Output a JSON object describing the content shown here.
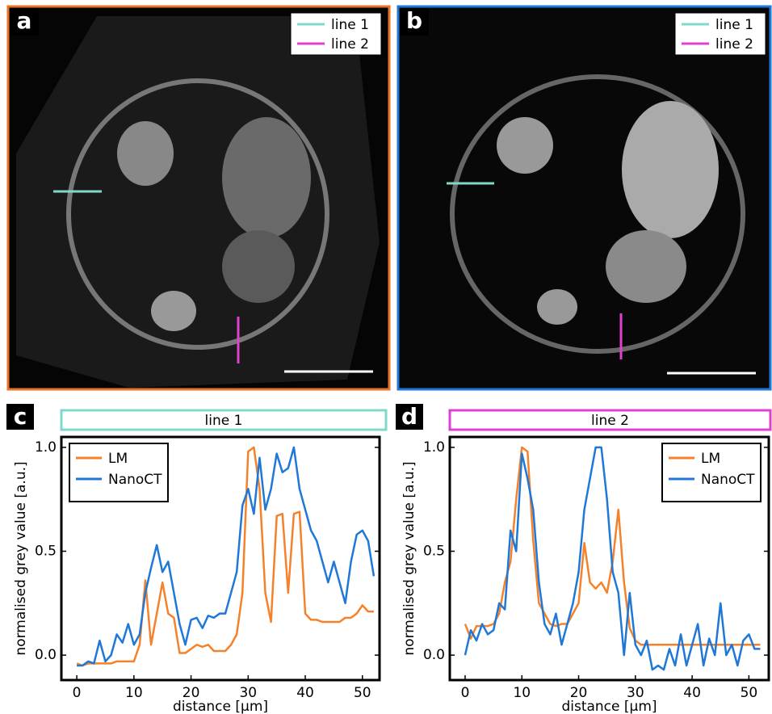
{
  "panels": [
    {
      "label": "a",
      "legend": [
        "line 1",
        "line 2"
      ]
    },
    {
      "label": "b",
      "legend": [
        "line 1",
        "line 2"
      ]
    }
  ],
  "chart_data": [
    {
      "type": "line",
      "panel": "c",
      "title": "line 1",
      "title_color": "#7fd8c8",
      "xlabel": "distance [µm]",
      "ylabel": "normalised grey value [a.u.]",
      "x": [
        0,
        1,
        2,
        3,
        4,
        5,
        6,
        7,
        8,
        9,
        10,
        11,
        12,
        13,
        14,
        15,
        16,
        17,
        18,
        19,
        20,
        21,
        22,
        23,
        24,
        25,
        26,
        27,
        28,
        29,
        30,
        31,
        32,
        33,
        34,
        35,
        36,
        37,
        38,
        39,
        40,
        41,
        42,
        43,
        44,
        45,
        46,
        47,
        48,
        49,
        50,
        51,
        52
      ],
      "series": [
        {
          "name": "LM",
          "color": "#f5822a",
          "values": [
            -0.04,
            -0.05,
            -0.04,
            -0.04,
            -0.04,
            -0.04,
            -0.04,
            -0.03,
            -0.03,
            -0.03,
            -0.03,
            0.05,
            0.36,
            0.05,
            0.2,
            0.35,
            0.2,
            0.18,
            0.01,
            0.01,
            0.03,
            0.05,
            0.04,
            0.05,
            0.02,
            0.02,
            0.02,
            0.05,
            0.1,
            0.3,
            0.98,
            1.0,
            0.8,
            0.3,
            0.16,
            0.67,
            0.68,
            0.3,
            0.68,
            0.69,
            0.2,
            0.17,
            0.17,
            0.16,
            0.16,
            0.16,
            0.16,
            0.18,
            0.18,
            0.2,
            0.24,
            0.21,
            0.21
          ]
        },
        {
          "name": "NanoCT",
          "color": "#1f78d8",
          "values": [
            -0.05,
            -0.05,
            -0.03,
            -0.04,
            0.07,
            -0.03,
            0.0,
            0.1,
            0.06,
            0.15,
            0.05,
            0.1,
            0.3,
            0.42,
            0.53,
            0.4,
            0.45,
            0.3,
            0.15,
            0.05,
            0.17,
            0.18,
            0.13,
            0.19,
            0.18,
            0.2,
            0.2,
            0.3,
            0.4,
            0.72,
            0.8,
            0.68,
            0.95,
            0.7,
            0.8,
            0.97,
            0.88,
            0.9,
            1.0,
            0.8,
            0.7,
            0.6,
            0.55,
            0.45,
            0.35,
            0.45,
            0.35,
            0.25,
            0.45,
            0.58,
            0.6,
            0.55,
            0.38
          ]
        }
      ],
      "xlim": [
        -2.7,
        53
      ],
      "ylim": [
        -0.12,
        1.05
      ],
      "xticks": [
        0,
        10,
        20,
        30,
        40,
        50
      ],
      "yticks": [
        {
          "value": 0,
          "label": "0.0"
        },
        0.5,
        {
          "value": 1,
          "label": "1.0"
        }
      ],
      "legend": "upper left"
    },
    {
      "type": "line",
      "panel": "d",
      "title": "line 2",
      "title_color": "#e040d0",
      "xlabel": "distance [µm]",
      "ylabel": "normalised grey value [a.u.]",
      "x": [
        0,
        1,
        2,
        3,
        4,
        5,
        6,
        7,
        8,
        9,
        10,
        11,
        12,
        13,
        14,
        15,
        16,
        17,
        18,
        19,
        20,
        21,
        22,
        23,
        24,
        25,
        26,
        27,
        28,
        29,
        30,
        31,
        32,
        33,
        34,
        35,
        36,
        37,
        38,
        39,
        40,
        41,
        42,
        43,
        44,
        45,
        46,
        47,
        48,
        49,
        50,
        51,
        52
      ],
      "series": [
        {
          "name": "LM",
          "color": "#f5822a",
          "values": [
            0.15,
            0.08,
            0.14,
            0.14,
            0.14,
            0.15,
            0.2,
            0.35,
            0.45,
            0.75,
            1.0,
            0.98,
            0.55,
            0.25,
            0.2,
            0.15,
            0.14,
            0.15,
            0.15,
            0.2,
            0.25,
            0.54,
            0.35,
            0.32,
            0.35,
            0.3,
            0.45,
            0.7,
            0.35,
            0.13,
            0.07,
            0.05,
            0.05,
            0.05,
            0.05,
            0.05,
            0.05,
            0.05,
            0.05,
            0.05,
            0.05,
            0.05,
            0.05,
            0.05,
            0.05,
            0.05,
            0.05,
            0.05,
            0.05,
            0.05,
            0.05,
            0.05,
            0.05
          ]
        },
        {
          "name": "NanoCT",
          "color": "#1f78d8",
          "values": [
            0.0,
            0.12,
            0.07,
            0.15,
            0.1,
            0.12,
            0.25,
            0.22,
            0.6,
            0.5,
            0.97,
            0.85,
            0.7,
            0.35,
            0.15,
            0.1,
            0.2,
            0.05,
            0.15,
            0.25,
            0.4,
            0.7,
            0.85,
            1.0,
            1.0,
            0.75,
            0.4,
            0.3,
            0.0,
            0.3,
            0.05,
            0.0,
            0.07,
            -0.07,
            -0.05,
            -0.07,
            0.03,
            -0.05,
            0.1,
            -0.05,
            0.05,
            0.15,
            -0.05,
            0.08,
            0.0,
            0.25,
            0.0,
            0.05,
            -0.05,
            0.07,
            0.1,
            0.03,
            0.03
          ]
        }
      ],
      "xlim": [
        -2.7,
        53.5
      ],
      "ylim": [
        -0.12,
        1.05
      ],
      "xticks": [
        0,
        10,
        20,
        30,
        40,
        50
      ],
      "yticks": [
        {
          "value": 0,
          "label": "0.0"
        },
        0.5,
        {
          "value": 1,
          "label": "1.0"
        }
      ],
      "legend": "upper right"
    }
  ]
}
